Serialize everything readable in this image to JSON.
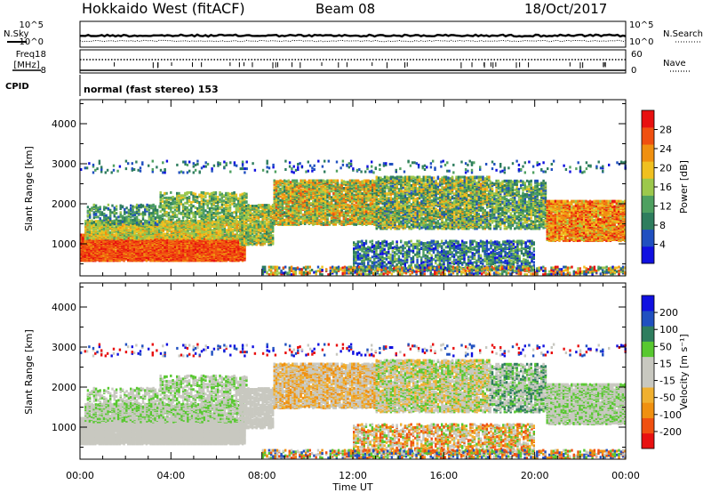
{
  "header": {
    "station": "Hokkaido West (fitACF)",
    "beam": "Beam 08",
    "date": "18/Oct/2017"
  },
  "top_panels": {
    "sky_label": "N.Sky",
    "search_label": "N.Search",
    "sky_ticks": [
      "10^5",
      "10^0"
    ],
    "search_ticks": [
      "10^5",
      "10^0"
    ],
    "freq_label_1": "Freq.",
    "freq_label_2": "[MHz]",
    "freq_ticks": [
      "18",
      "8"
    ],
    "nave_label": "Nave",
    "nave_ticks": [
      "60",
      "0"
    ],
    "cpid_label": "CPID",
    "cpid_value": "normal (fast stereo) 153"
  },
  "colors": {
    "power": [
      "#1010e0",
      "#2050c0",
      "#2e7d5e",
      "#4ea060",
      "#9cc84c",
      "#f0c020",
      "#f09010",
      "#f05010",
      "#e81010"
    ],
    "velocity": [
      "#e81010",
      "#f05010",
      "#f09010",
      "#f0b030",
      "#c8c8c0",
      "#c8c8c0",
      "#58c830",
      "#2e7d5e",
      "#2050c0",
      "#1010e0"
    ]
  },
  "chart_data": [
    {
      "type": "heatmap",
      "name": "power-panel",
      "ylabel": "Slant Range [km]",
      "xlabel": "",
      "yticks": [
        "1000",
        "2000",
        "3000",
        "4000"
      ],
      "ylim": [
        200,
        4600
      ],
      "xlim_hours": [
        0,
        24
      ],
      "colorbar_label": "Power [dB]",
      "colorbar_ticks": [
        "4",
        "8",
        "12",
        "16",
        "20",
        "24",
        "28"
      ],
      "clim": [
        0,
        32
      ]
    },
    {
      "type": "heatmap",
      "name": "velocity-panel",
      "ylabel": "Slant Range [km]",
      "xlabel": "Time UT",
      "yticks": [
        "1000",
        "2000",
        "3000",
        "4000"
      ],
      "ylim": [
        200,
        4600
      ],
      "xticks": [
        "00:00",
        "04:00",
        "08:00",
        "12:00",
        "16:00",
        "20:00",
        "00:00"
      ],
      "xlim_hours": [
        0,
        24
      ],
      "colorbar_label": "Velocity [m s⁻¹]",
      "colorbar_ticks": [
        "-200",
        "-100",
        "-50",
        "-15",
        "15",
        "50",
        "100",
        "200"
      ]
    }
  ]
}
